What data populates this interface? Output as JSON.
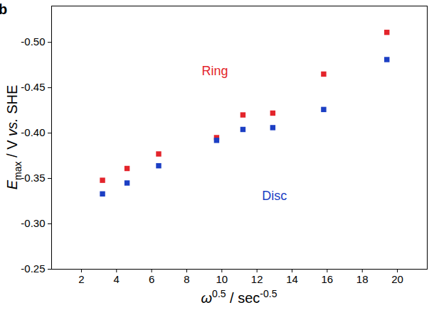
{
  "chart_data": {
    "type": "scatter",
    "title": "b",
    "xlabel": [
      {
        "text": "ω",
        "style": "italic"
      },
      {
        "text": "0.5",
        "style": "sup"
      },
      {
        "text": " / sec",
        "style": "normal"
      },
      {
        "text": "-0.5",
        "style": "sup"
      }
    ],
    "ylabel": [
      {
        "text": "E",
        "style": "italic"
      },
      {
        "text": "max",
        "style": "sub"
      },
      {
        "text": " / V ",
        "style": "normal"
      },
      {
        "text": "vs.",
        "style": "italic"
      },
      {
        "text": " SHE",
        "style": "normal"
      }
    ],
    "x": [
      3.2,
      4.6,
      6.4,
      9.7,
      11.2,
      12.9,
      15.8,
      19.4
    ],
    "series": [
      {
        "name": "Ring",
        "color": "#e3242b",
        "marker": "square",
        "values": [
          -0.348,
          -0.361,
          -0.377,
          -0.395,
          -0.42,
          -0.422,
          -0.465,
          -0.511
        ]
      },
      {
        "name": "Disc",
        "color": "#1c3fc4",
        "marker": "square",
        "values": [
          -0.333,
          -0.345,
          -0.364,
          -0.392,
          -0.404,
          -0.406,
          -0.426,
          -0.481
        ]
      }
    ],
    "annotations": [
      {
        "text": "Ring",
        "x": 9.6,
        "y": -0.468,
        "color": "#e3242b"
      },
      {
        "text": "Disc",
        "x": 13.0,
        "y": -0.331,
        "color": "#1c3fc4"
      }
    ],
    "xlim": [
      0.3,
      21.7
    ],
    "xticks": [
      2,
      4,
      6,
      8,
      10,
      12,
      14,
      16,
      18,
      20
    ],
    "ylim": [
      -0.25,
      -0.54
    ],
    "yticks": [
      -0.25,
      {
        "value": -0.3,
        "label": "-0.30"
      },
      -0.35,
      {
        "value": -0.4,
        "label": "-0.40"
      },
      -0.45,
      {
        "value": -0.5,
        "label": "-0.50"
      }
    ],
    "grid": false
  }
}
